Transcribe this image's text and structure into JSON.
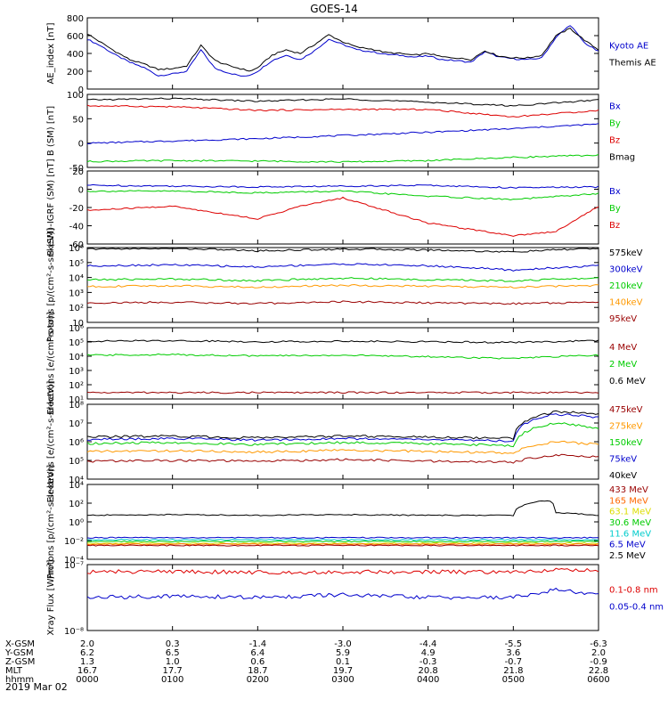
{
  "title": "GOES-14",
  "date_label": "2019 Mar 02",
  "colors": {
    "black": "#000000",
    "blue": "#0000cc",
    "green": "#00cc00",
    "red": "#dd0000",
    "orange": "#ff9900",
    "darkred": "#990000",
    "cyan": "#00cccc",
    "yellow": "#dddd00"
  },
  "time_axis": {
    "ticks": [
      "0000",
      "0100",
      "0200",
      "0300",
      "0400",
      "0500",
      "0600"
    ],
    "rows": [
      {
        "label": "X-GSM",
        "values": [
          "2.0",
          "0.3",
          "-1.4",
          "-3.0",
          "-4.4",
          "-5.5",
          "-6.3"
        ]
      },
      {
        "label": "Y-GSM",
        "values": [
          "6.2",
          "6.5",
          "6.4",
          "5.9",
          "4.9",
          "3.6",
          "2.0"
        ]
      },
      {
        "label": "Z-GSM",
        "values": [
          "1.3",
          "1.0",
          "0.6",
          "0.1",
          "-0.3",
          "-0.7",
          "-0.9"
        ]
      },
      {
        "label": "MLT",
        "values": [
          "16.7",
          "17.7",
          "18.7",
          "19.7",
          "20.8",
          "21.8",
          "22.8"
        ]
      },
      {
        "label": "hhmm",
        "values": [
          "0000",
          "0100",
          "0200",
          "0300",
          "0400",
          "0500",
          "0600"
        ]
      }
    ]
  },
  "chart_data": [
    {
      "type": "line",
      "ylabel": "AE_index [nT]",
      "ylim": [
        0,
        800
      ],
      "yticks": [
        "0",
        "200",
        "400",
        "600",
        "800"
      ],
      "series": [
        {
          "name": "Kyoto AE",
          "color": "#0000cc",
          "x": [
            0,
            10,
            20,
            30,
            40,
            50,
            60,
            70,
            80,
            90,
            100,
            110,
            115,
            120,
            130,
            140,
            150,
            160,
            170,
            180,
            190,
            200,
            210,
            220,
            230,
            240,
            250,
            260,
            270,
            280,
            290,
            300,
            310,
            320,
            330,
            340,
            350,
            360
          ],
          "y": [
            560,
            480,
            380,
            300,
            240,
            150,
            170,
            200,
            440,
            230,
            180,
            140,
            160,
            200,
            320,
            380,
            330,
            430,
            560,
            500,
            440,
            420,
            390,
            380,
            360,
            370,
            330,
            320,
            300,
            420,
            360,
            340,
            330,
            350,
            580,
            720,
            520,
            420
          ]
        },
        {
          "name": "Themis AE",
          "color": "#000000",
          "x": [
            0,
            10,
            20,
            30,
            40,
            50,
            60,
            70,
            80,
            90,
            100,
            110,
            115,
            120,
            130,
            140,
            150,
            160,
            170,
            180,
            190,
            200,
            210,
            220,
            230,
            240,
            250,
            260,
            270,
            280,
            290,
            300,
            310,
            320,
            330,
            340,
            350,
            360
          ],
          "y": [
            620,
            520,
            420,
            330,
            280,
            220,
            230,
            260,
            490,
            320,
            260,
            220,
            200,
            240,
            380,
            440,
            400,
            500,
            610,
            530,
            470,
            450,
            410,
            400,
            380,
            400,
            360,
            350,
            330,
            430,
            370,
            350,
            350,
            380,
            600,
            680,
            550,
            440
          ]
        }
      ]
    },
    {
      "type": "line",
      "ylabel": "B (SM) [nT]",
      "ylim": [
        -55,
        105
      ],
      "yticks": [
        "-50",
        "0",
        "50",
        "100"
      ],
      "labels": [
        "Bx",
        "By",
        "Bz",
        "Bmag"
      ],
      "series": [
        {
          "name": "Bx",
          "color": "#0000cc",
          "x": [
            0,
            60,
            120,
            180,
            240,
            300,
            360
          ],
          "y": [
            -2,
            3,
            8,
            15,
            22,
            30,
            40
          ]
        },
        {
          "name": "By",
          "color": "#00cc00",
          "x": [
            0,
            60,
            120,
            180,
            240,
            300,
            360
          ],
          "y": [
            -42,
            -40,
            -41,
            -43,
            -40,
            -33,
            -28
          ]
        },
        {
          "name": "Bz",
          "color": "#dd0000",
          "x": [
            0,
            60,
            120,
            180,
            240,
            300,
            360
          ],
          "y": [
            80,
            78,
            70,
            72,
            72,
            56,
            70
          ]
        },
        {
          "name": "Bmag",
          "color": "#000000",
          "x": [
            0,
            60,
            120,
            180,
            240,
            300,
            360
          ],
          "y": [
            93,
            96,
            90,
            95,
            88,
            80,
            93
          ]
        }
      ]
    },
    {
      "type": "line",
      "ylabel": "B (SM)-IGRF (SM) [nT]",
      "ylim": [
        -65,
        22
      ],
      "yticks": [
        "-60",
        "-40",
        "-20",
        "0",
        "20"
      ],
      "labels": [
        "Bx",
        "By",
        "Bz"
      ],
      "series": [
        {
          "name": "Bx",
          "color": "#0000cc",
          "x": [
            0,
            60,
            120,
            180,
            240,
            300,
            360
          ],
          "y": [
            5,
            4,
            3,
            4,
            5,
            2,
            3
          ]
        },
        {
          "name": "By",
          "color": "#00cc00",
          "x": [
            0,
            60,
            120,
            180,
            240,
            300,
            360
          ],
          "y": [
            -2,
            -2,
            -4,
            -2,
            -8,
            -12,
            -5
          ]
        },
        {
          "name": "Bz",
          "color": "#dd0000",
          "x": [
            0,
            60,
            120,
            150,
            180,
            240,
            300,
            330,
            360
          ],
          "y": [
            -25,
            -20,
            -35,
            -20,
            -10,
            -40,
            -55,
            -50,
            -20
          ]
        }
      ]
    },
    {
      "type": "line",
      "ylabel": "Protons [p/(cm²-s-sr-keV)]",
      "ylog": true,
      "ylim": [
        10,
        1000000
      ],
      "yticks": [
        "10",
        "10²",
        "10³",
        "10⁴",
        "10⁵",
        "10⁶"
      ],
      "labels": [
        "575keV",
        "300keV",
        "210keV",
        "140keV",
        "95keV"
      ],
      "series": [
        {
          "name": "575keV",
          "color": "#000000",
          "x": [
            0,
            60,
            120,
            180,
            240,
            300,
            360
          ],
          "y": [
            800000,
            900000,
            600000,
            800000,
            700000,
            500000,
            900000
          ]
        },
        {
          "name": "300keV",
          "color": "#0000cc",
          "x": [
            0,
            60,
            120,
            180,
            240,
            300,
            360
          ],
          "y": [
            60000,
            70000,
            50000,
            80000,
            60000,
            30000,
            60000
          ]
        },
        {
          "name": "210keV",
          "color": "#00cc00",
          "x": [
            0,
            60,
            120,
            180,
            240,
            300,
            360
          ],
          "y": [
            7000,
            8000,
            6000,
            9000,
            7000,
            6000,
            9000
          ]
        },
        {
          "name": "140keV",
          "color": "#ff9900",
          "x": [
            0,
            60,
            120,
            180,
            240,
            300,
            360
          ],
          "y": [
            2500,
            2800,
            2200,
            3000,
            2600,
            2200,
            3000
          ]
        },
        {
          "name": "95keV",
          "color": "#990000",
          "x": [
            0,
            60,
            120,
            180,
            240,
            300,
            360
          ],
          "y": [
            200,
            220,
            180,
            240,
            200,
            180,
            220
          ]
        }
      ]
    },
    {
      "type": "line",
      "ylabel": "Electrons [e/(cm²-s-sr)]",
      "ylog": true,
      "ylim": [
        5,
        1000000
      ],
      "yticks": [
        "10¹",
        "10²",
        "10³",
        "10⁴",
        "10⁵",
        "10⁶"
      ],
      "labels": [
        "4 MeV",
        "2 MeV",
        "0.6 MeV"
      ],
      "series": [
        {
          "name": "4 MeV",
          "color": "#990000",
          "x": [
            0,
            60,
            120,
            180,
            240,
            300,
            360
          ],
          "y": [
            15,
            15,
            15,
            15,
            15,
            15,
            15
          ]
        },
        {
          "name": "2 MeV",
          "color": "#00cc00",
          "x": [
            0,
            60,
            120,
            180,
            240,
            300,
            360
          ],
          "y": [
            9000,
            10000,
            8000,
            9000,
            7000,
            5000,
            9000
          ]
        },
        {
          "name": "0.6 MeV",
          "color": "#000000",
          "x": [
            0,
            60,
            120,
            180,
            240,
            300,
            360
          ],
          "y": [
            100000,
            110000,
            90000,
            100000,
            90000,
            80000,
            110000
          ]
        }
      ]
    },
    {
      "type": "line",
      "ylabel": "Electrons [e/(cm²-s-sr-keV)]",
      "ylog": true,
      "ylim": [
        10000,
        100000000
      ],
      "yticks": [
        "10⁴",
        "10⁵",
        "10⁶",
        "10⁷",
        "10⁸"
      ],
      "labels": [
        "475keV",
        "275keV",
        "150keV",
        "75keV",
        "40keV"
      ],
      "series": [
        {
          "name": "475keV",
          "color": "#990000",
          "x": [
            0,
            60,
            120,
            180,
            240,
            300,
            330,
            360
          ],
          "y": [
            90000,
            100000,
            90000,
            110000,
            90000,
            80000,
            200000,
            150000
          ]
        },
        {
          "name": "275keV",
          "color": "#ff9900",
          "x": [
            0,
            60,
            120,
            180,
            240,
            300,
            330,
            360
          ],
          "y": [
            300000,
            330000,
            280000,
            350000,
            300000,
            250000,
            1000000,
            700000
          ]
        },
        {
          "name": "150keV",
          "color": "#00cc00",
          "x": [
            0,
            60,
            120,
            180,
            240,
            300,
            330,
            360
          ],
          "y": [
            800000,
            900000,
            700000,
            900000,
            800000,
            600000,
            10000000,
            5000000
          ]
        },
        {
          "name": "75keV",
          "color": "#0000cc",
          "x": [
            0,
            60,
            120,
            180,
            240,
            300,
            330,
            360
          ],
          "y": [
            1300000,
            1500000,
            1200000,
            1500000,
            1300000,
            1100000,
            30000000,
            20000000
          ]
        },
        {
          "name": "40keV",
          "color": "#000000",
          "x": [
            0,
            60,
            120,
            180,
            240,
            300,
            330,
            360
          ],
          "y": [
            1800000,
            2000000,
            1600000,
            2000000,
            1800000,
            1500000,
            40000000,
            30000000
          ]
        }
      ]
    },
    {
      "type": "line",
      "ylabel": "Protons [p/(cm²-s-sr-keV)]",
      "ylog": true,
      "ylim": [
        0.0001,
        10000
      ],
      "yticks": [
        "10⁻⁴",
        "10⁻²",
        "10⁰",
        "10²",
        "10⁴"
      ],
      "labels": [
        "433 MeV",
        "165 MeV",
        "63.1 MeV",
        "30.6 MeV",
        "11.6 MeV",
        "6.5 MeV",
        "2.5 MeV"
      ],
      "series": [
        {
          "name": "2.5 MeV",
          "color": "#000000",
          "x": [
            0,
            60,
            120,
            180,
            240,
            300,
            325,
            330,
            360
          ],
          "y": [
            5,
            6,
            5,
            6,
            5,
            5,
            200,
            10,
            5
          ]
        },
        {
          "name": "6.5 MeV",
          "color": "#0000cc",
          "x": [
            0,
            60,
            120,
            180,
            240,
            300,
            360
          ],
          "y": [
            0.02,
            0.02,
            0.02,
            0.02,
            0.02,
            0.02,
            0.02
          ]
        },
        {
          "name": "11.6 MeV",
          "color": "#00cccc",
          "x": [
            0,
            60,
            120,
            180,
            240,
            300,
            360
          ],
          "y": [
            0.012,
            0.012,
            0.012,
            0.012,
            0.012,
            0.012,
            0.012
          ]
        },
        {
          "name": "30.6 MeV",
          "color": "#00cc00",
          "x": [
            0,
            60,
            120,
            180,
            240,
            300,
            360
          ],
          "y": [
            0.008,
            0.008,
            0.008,
            0.008,
            0.008,
            0.008,
            0.008
          ]
        },
        {
          "name": "63.1 MeV",
          "color": "#dddd00",
          "x": [
            0,
            60,
            120,
            180,
            240,
            300,
            360
          ],
          "y": [
            0.005,
            0.005,
            0.005,
            0.005,
            0.005,
            0.005,
            0.005
          ]
        },
        {
          "name": "165 MeV",
          "color": "#ff6600",
          "x": [
            0,
            60,
            120,
            180,
            240,
            300,
            360
          ],
          "y": [
            0.004,
            0.004,
            0.004,
            0.004,
            0.004,
            0.004,
            0.004
          ]
        },
        {
          "name": "433 MeV",
          "color": "#990000",
          "x": [
            0,
            60,
            120,
            180,
            240,
            300,
            360
          ],
          "y": [
            0.003,
            0.003,
            0.003,
            0.003,
            0.003,
            0.003,
            0.003
          ]
        }
      ]
    },
    {
      "type": "line",
      "ylabel": "Xray Flux [W/m²]",
      "ylog": true,
      "ylim": [
        1e-09,
        1e-07
      ],
      "yticks": [
        "10⁻⁸",
        "10⁻⁷"
      ],
      "labels": [
        "0.1-0.8 nm",
        "0.05-0.4 nm"
      ],
      "series": [
        {
          "name": "0.1-0.8 nm",
          "color": "#dd0000",
          "x": [
            0,
            60,
            120,
            180,
            240,
            300,
            330,
            360
          ],
          "y": [
            6e-08,
            6.2e-08,
            5.8e-08,
            6e-08,
            6e-08,
            5.8e-08,
            7e-08,
            6.5e-08
          ]
        },
        {
          "name": "0.05-0.4 nm",
          "color": "#0000cc",
          "x": [
            0,
            60,
            120,
            180,
            240,
            300,
            330,
            360
          ],
          "y": [
            1e-08,
            1.1e-08,
            1e-08,
            1.2e-08,
            1e-08,
            1e-08,
            1.7e-08,
            1.2e-08
          ]
        }
      ]
    }
  ]
}
